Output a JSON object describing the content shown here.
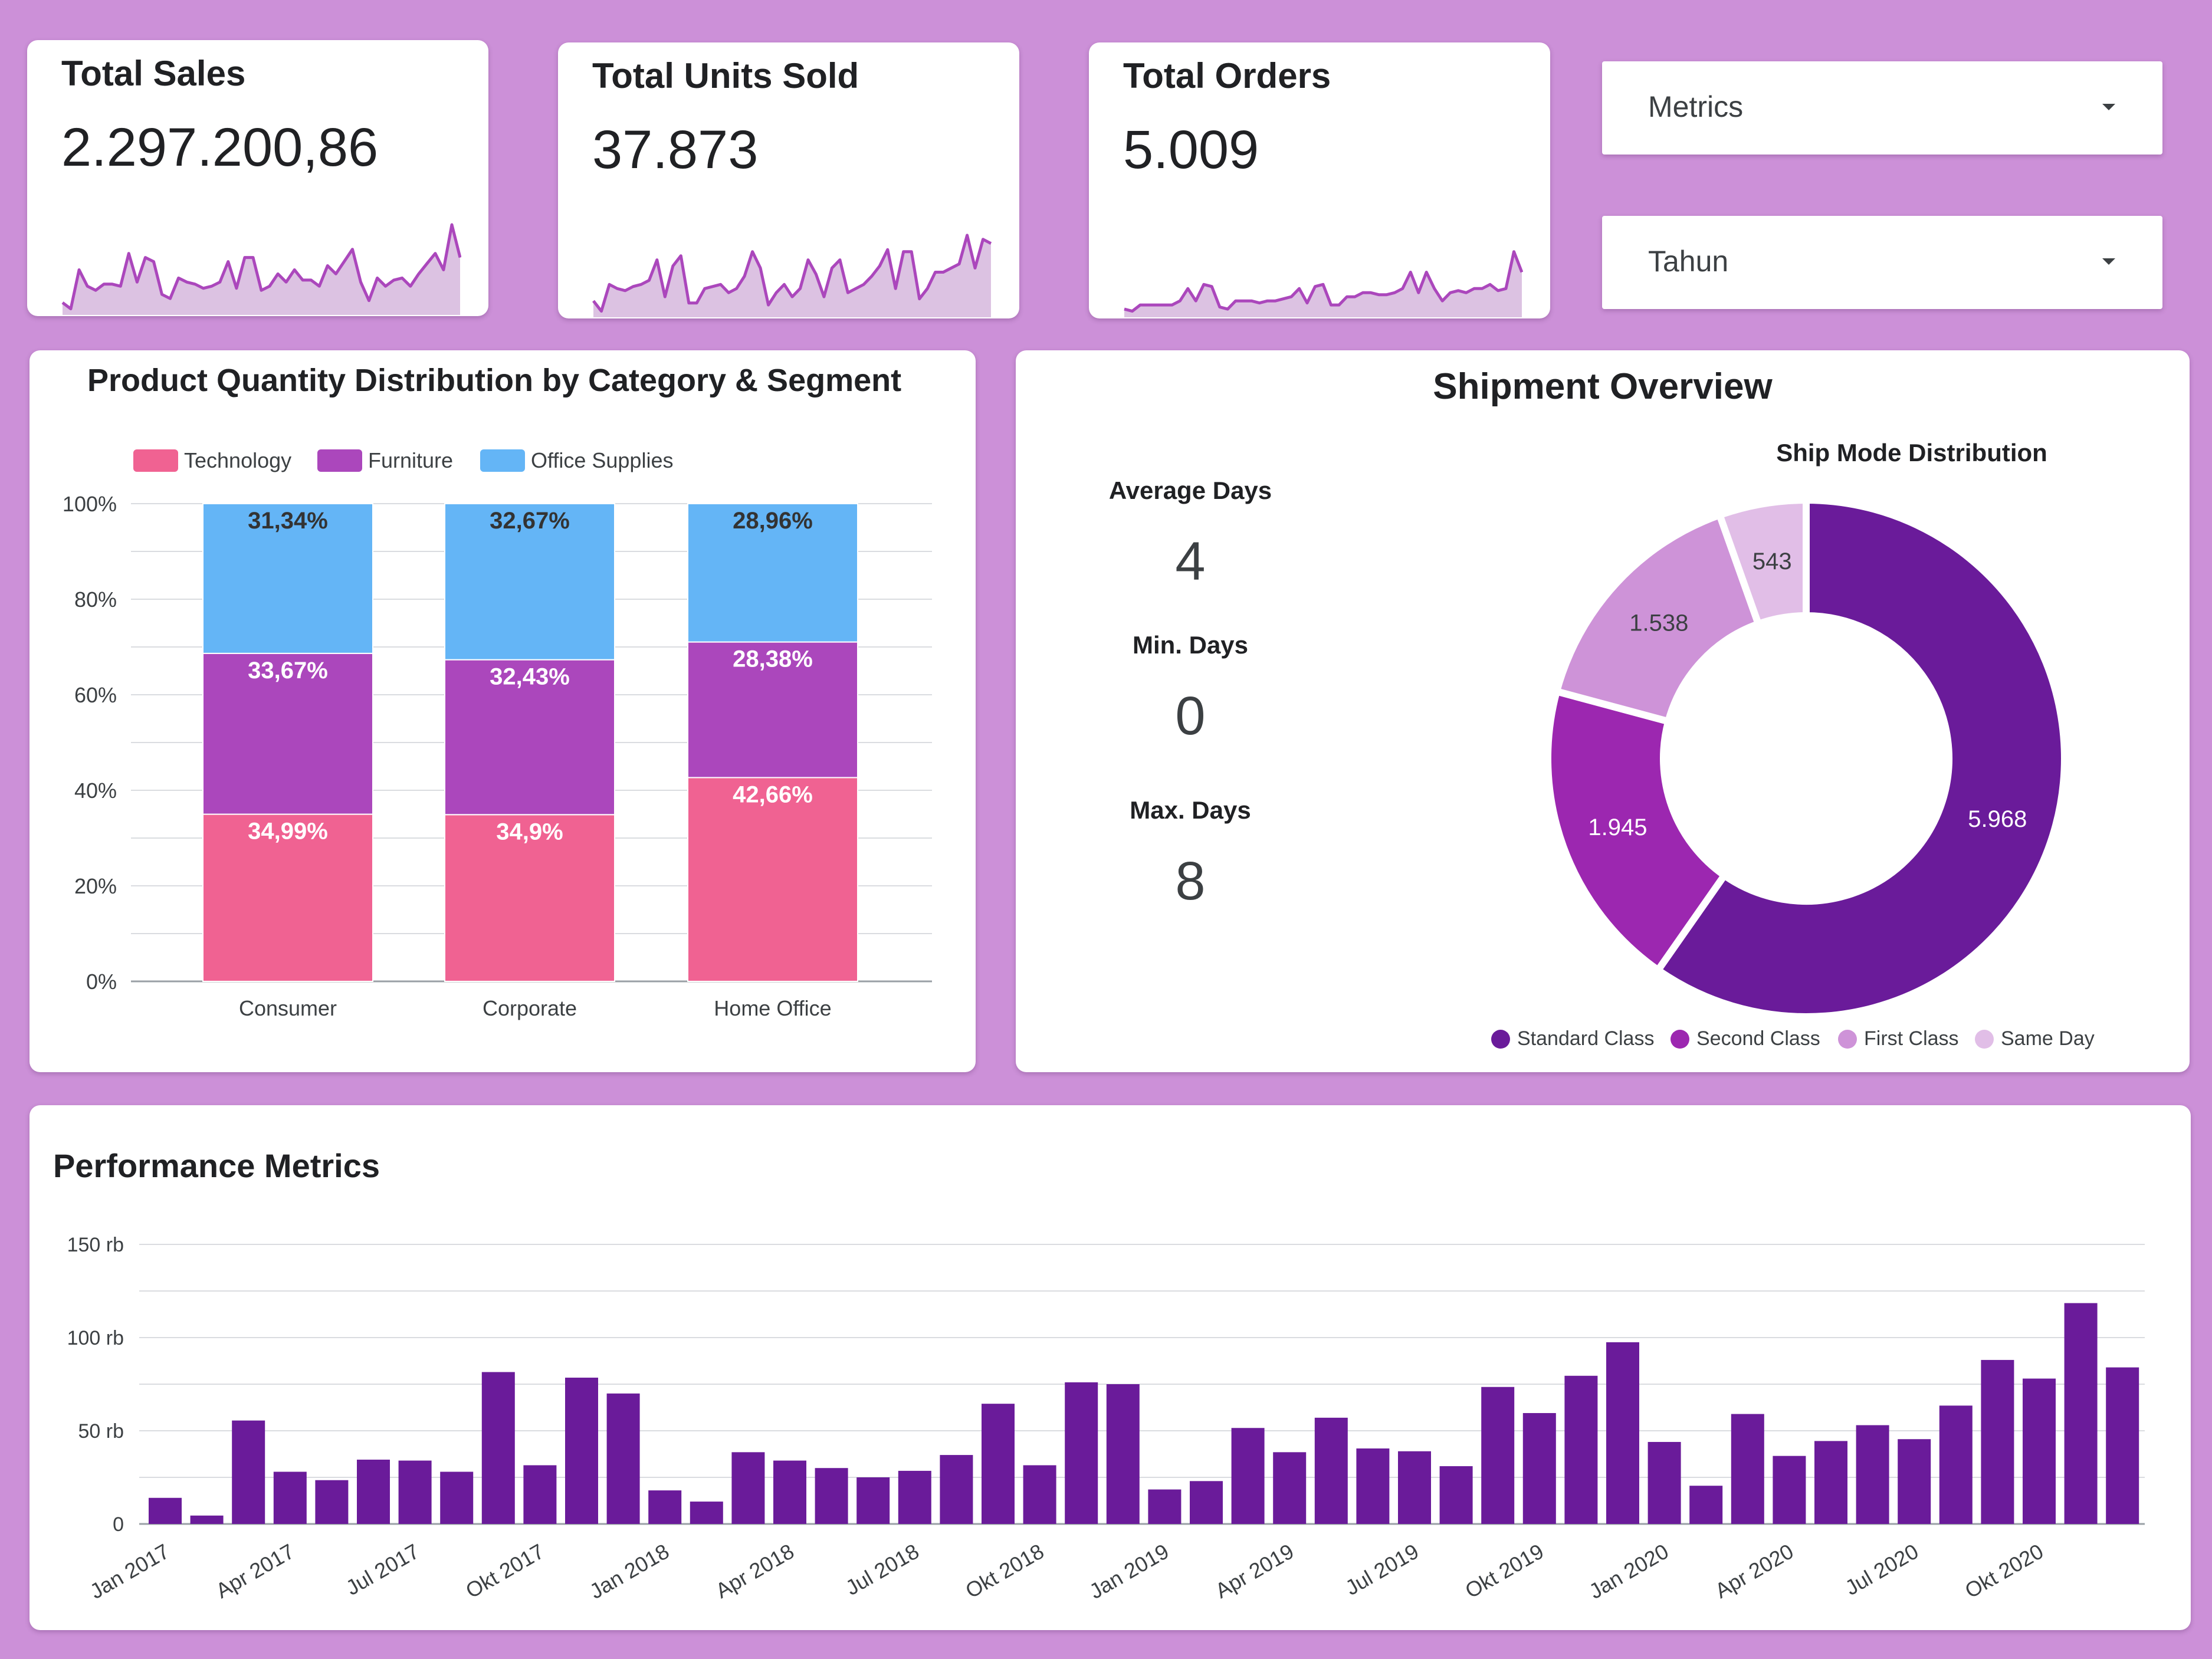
{
  "kpis": [
    {
      "title": "Total Sales",
      "value": "2.297.200,86",
      "trend": [
        6,
        3,
        22,
        14,
        12,
        15,
        15,
        14,
        30,
        16,
        28,
        26,
        10,
        8,
        18,
        16,
        15,
        13,
        14,
        16,
        26,
        13,
        28,
        28,
        12,
        14,
        20,
        16,
        22,
        17,
        17,
        14,
        24,
        20,
        26,
        32,
        16,
        7,
        18,
        14,
        17,
        18,
        14,
        20,
        25,
        30,
        22,
        44,
        28
      ]
    },
    {
      "title": "Total Units Sold",
      "value": "37.873",
      "trend": [
        8,
        3,
        16,
        14,
        13,
        15,
        16,
        18,
        28,
        10,
        25,
        30,
        7,
        7,
        14,
        15,
        16,
        12,
        14,
        20,
        32,
        24,
        6,
        12,
        16,
        10,
        14,
        28,
        21,
        10,
        24,
        28,
        12,
        14,
        16,
        20,
        25,
        33,
        14,
        32,
        32,
        9,
        14,
        22,
        22,
        24,
        26,
        40,
        24,
        38,
        36
      ]
    },
    {
      "title": "Total Orders",
      "value": "5.009",
      "trend": [
        4,
        3,
        6,
        6,
        6,
        6,
        6,
        8,
        14,
        8,
        16,
        15,
        5,
        4,
        8,
        8,
        8,
        7,
        8,
        8,
        9,
        10,
        14,
        7,
        15,
        16,
        6,
        6,
        10,
        10,
        12,
        12,
        11,
        11,
        12,
        14,
        22,
        12,
        22,
        14,
        8,
        12,
        13,
        12,
        14,
        14,
        16,
        13,
        14,
        32,
        22
      ]
    }
  ],
  "filters": [
    {
      "label": "Metrics"
    },
    {
      "label": "Tahun"
    }
  ],
  "product_dist": {
    "title": "Product Quantity Distribution by Category & Segment",
    "legend": [
      {
        "name": "Technology",
        "color": "#f06292"
      },
      {
        "name": "Furniture",
        "color": "#ab47bc"
      },
      {
        "name": "Office Supplies",
        "color": "#64b5f6"
      }
    ]
  },
  "shipment": {
    "title": "Shipment Overview",
    "stats": [
      {
        "label": "Average Days",
        "value": "4"
      },
      {
        "label": "Min. Days",
        "value": "0"
      },
      {
        "label": "Max. Days",
        "value": "8"
      }
    ],
    "donut_title": "Ship Mode Distribution",
    "legend": [
      {
        "name": "Standard Class",
        "color": "#6a1b9a"
      },
      {
        "name": "Second Class",
        "color": "#9c27b0"
      },
      {
        "name": "First Class",
        "color": "#ce93d8"
      },
      {
        "name": "Same Day",
        "color": "#e1bee7"
      }
    ]
  },
  "performance": {
    "title": "Performance Metrics"
  },
  "chart_data": [
    {
      "type": "bar",
      "stacked": true,
      "title": "Product Quantity Distribution by Category & Segment",
      "categories": [
        "Consumer",
        "Corporate",
        "Home Office"
      ],
      "series": [
        {
          "name": "Technology",
          "color": "#f06292",
          "values": [
            34.99,
            34.9,
            42.66
          ],
          "labels": [
            "34,99%",
            "34,9%",
            "42,66%"
          ]
        },
        {
          "name": "Furniture",
          "color": "#ab47bc",
          "values": [
            33.67,
            32.43,
            28.38
          ],
          "labels": [
            "33,67%",
            "32,43%",
            "28,38%"
          ]
        },
        {
          "name": "Office Supplies",
          "color": "#64b5f6",
          "values": [
            31.34,
            32.67,
            28.96
          ],
          "labels": [
            "31,34%",
            "32,67%",
            "28,96%"
          ]
        }
      ],
      "yticks": [
        "0%",
        "20%",
        "40%",
        "60%",
        "80%",
        "100%"
      ],
      "ylim": [
        0,
        100
      ],
      "legend_position": "top"
    },
    {
      "type": "pie",
      "donut": true,
      "title": "Ship Mode Distribution",
      "slices": [
        {
          "name": "Standard Class",
          "value": 5968,
          "label": "5.968",
          "color": "#6a1b9a"
        },
        {
          "name": "Second Class",
          "value": 1945,
          "label": "1.945",
          "color": "#9c27b0"
        },
        {
          "name": "First Class",
          "value": 1538,
          "label": "1.538",
          "color": "#ce93d8"
        },
        {
          "name": "Same Day",
          "value": 543,
          "label": "543",
          "color": "#e1bee7"
        }
      ],
      "legend_position": "bottom"
    },
    {
      "type": "bar",
      "title": "Performance Metrics",
      "x": [
        "Jan 2017",
        "Feb 2017",
        "Mar 2017",
        "Apr 2017",
        "Mei 2017",
        "Jun 2017",
        "Jul 2017",
        "Agu 2017",
        "Sep 2017",
        "Okt 2017",
        "Nov 2017",
        "Des 2017",
        "Jan 2018",
        "Feb 2018",
        "Mar 2018",
        "Apr 2018",
        "Mei 2018",
        "Jun 2018",
        "Jul 2018",
        "Agu 2018",
        "Sep 2018",
        "Okt 2018",
        "Nov 2018",
        "Des 2018",
        "Jan 2019",
        "Feb 2019",
        "Mar 2019",
        "Apr 2019",
        "Mei 2019",
        "Jun 2019",
        "Jul 2019",
        "Agu 2019",
        "Sep 2019",
        "Okt 2019",
        "Nov 2019",
        "Des 2019",
        "Jan 2020",
        "Feb 2020",
        "Mar 2020",
        "Apr 2020",
        "Mei 2020",
        "Jun 2020",
        "Jul 2020",
        "Agu 2020",
        "Sep 2020",
        "Okt 2020",
        "Nov 2020",
        "Des 2020"
      ],
      "tick_labels": [
        "Jan 2017",
        "Apr 2017",
        "Jul 2017",
        "Okt 2017",
        "Jan 2018",
        "Apr 2018",
        "Jul 2018",
        "Okt 2018",
        "Jan 2019",
        "Apr 2019",
        "Jul 2019",
        "Okt 2019",
        "Jan 2020",
        "Apr 2020",
        "Jul 2020",
        "Okt 2020"
      ],
      "values": [
        14000,
        4500,
        55500,
        28000,
        23500,
        34500,
        34000,
        28000,
        81500,
        31500,
        78500,
        70000,
        18000,
        12000,
        38500,
        34000,
        30000,
        25000,
        28500,
        37000,
        64500,
        31500,
        76000,
        75000,
        18500,
        23000,
        51500,
        38500,
        57000,
        40500,
        39000,
        31000,
        73500,
        59500,
        79500,
        97500,
        44000,
        20500,
        59000,
        36500,
        44500,
        53000,
        45500,
        63500,
        88000,
        78000,
        118500,
        84000
      ],
      "color": "#6a1b9a",
      "yticks": [
        "0",
        "50 rb",
        "100 rb",
        "150 rb"
      ],
      "ylim": [
        0,
        150000
      ]
    }
  ]
}
